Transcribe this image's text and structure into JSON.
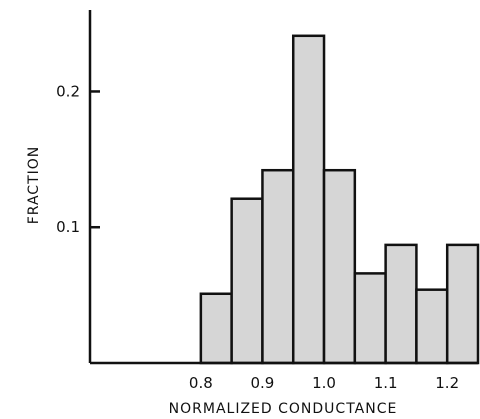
{
  "chart_data": {
    "type": "bar",
    "subtype": "histogram",
    "title": "",
    "xlabel": "NORMALIZED CONDUCTANCE",
    "ylabel": "FRACTION",
    "bin_width": 0.05,
    "bins": [
      {
        "x0": 0.8,
        "x1": 0.85,
        "value": 0.051
      },
      {
        "x0": 0.85,
        "x1": 0.9,
        "value": 0.121
      },
      {
        "x0": 0.9,
        "x1": 0.95,
        "value": 0.142
      },
      {
        "x0": 0.95,
        "x1": 1.0,
        "value": 0.241
      },
      {
        "x0": 1.0,
        "x1": 1.05,
        "value": 0.142
      },
      {
        "x0": 1.05,
        "x1": 1.1,
        "value": 0.066
      },
      {
        "x0": 1.1,
        "x1": 1.15,
        "value": 0.087
      },
      {
        "x0": 1.15,
        "x1": 1.2,
        "value": 0.054
      },
      {
        "x0": 1.2,
        "x1": 1.25,
        "value": 0.087
      }
    ],
    "x_ticks": [
      {
        "value": 0.8,
        "label": "0.8"
      },
      {
        "value": 0.9,
        "label": "0.9"
      },
      {
        "value": 1.0,
        "label": "1.0"
      },
      {
        "value": 1.1,
        "label": "1.1"
      },
      {
        "value": 1.2,
        "label": "1.2"
      }
    ],
    "y_ticks": [
      {
        "value": 0.1,
        "label": "0.1"
      },
      {
        "value": 0.2,
        "label": "0.2"
      }
    ],
    "xlim": [
      0.62,
      1.25
    ],
    "ylim": [
      0,
      0.26
    ],
    "grid": false,
    "legend": "none",
    "colors": {
      "bar_fill": "#d6d6d6",
      "bar_stroke": "#111111",
      "axis": "#111111",
      "background": "#ffffff"
    }
  }
}
